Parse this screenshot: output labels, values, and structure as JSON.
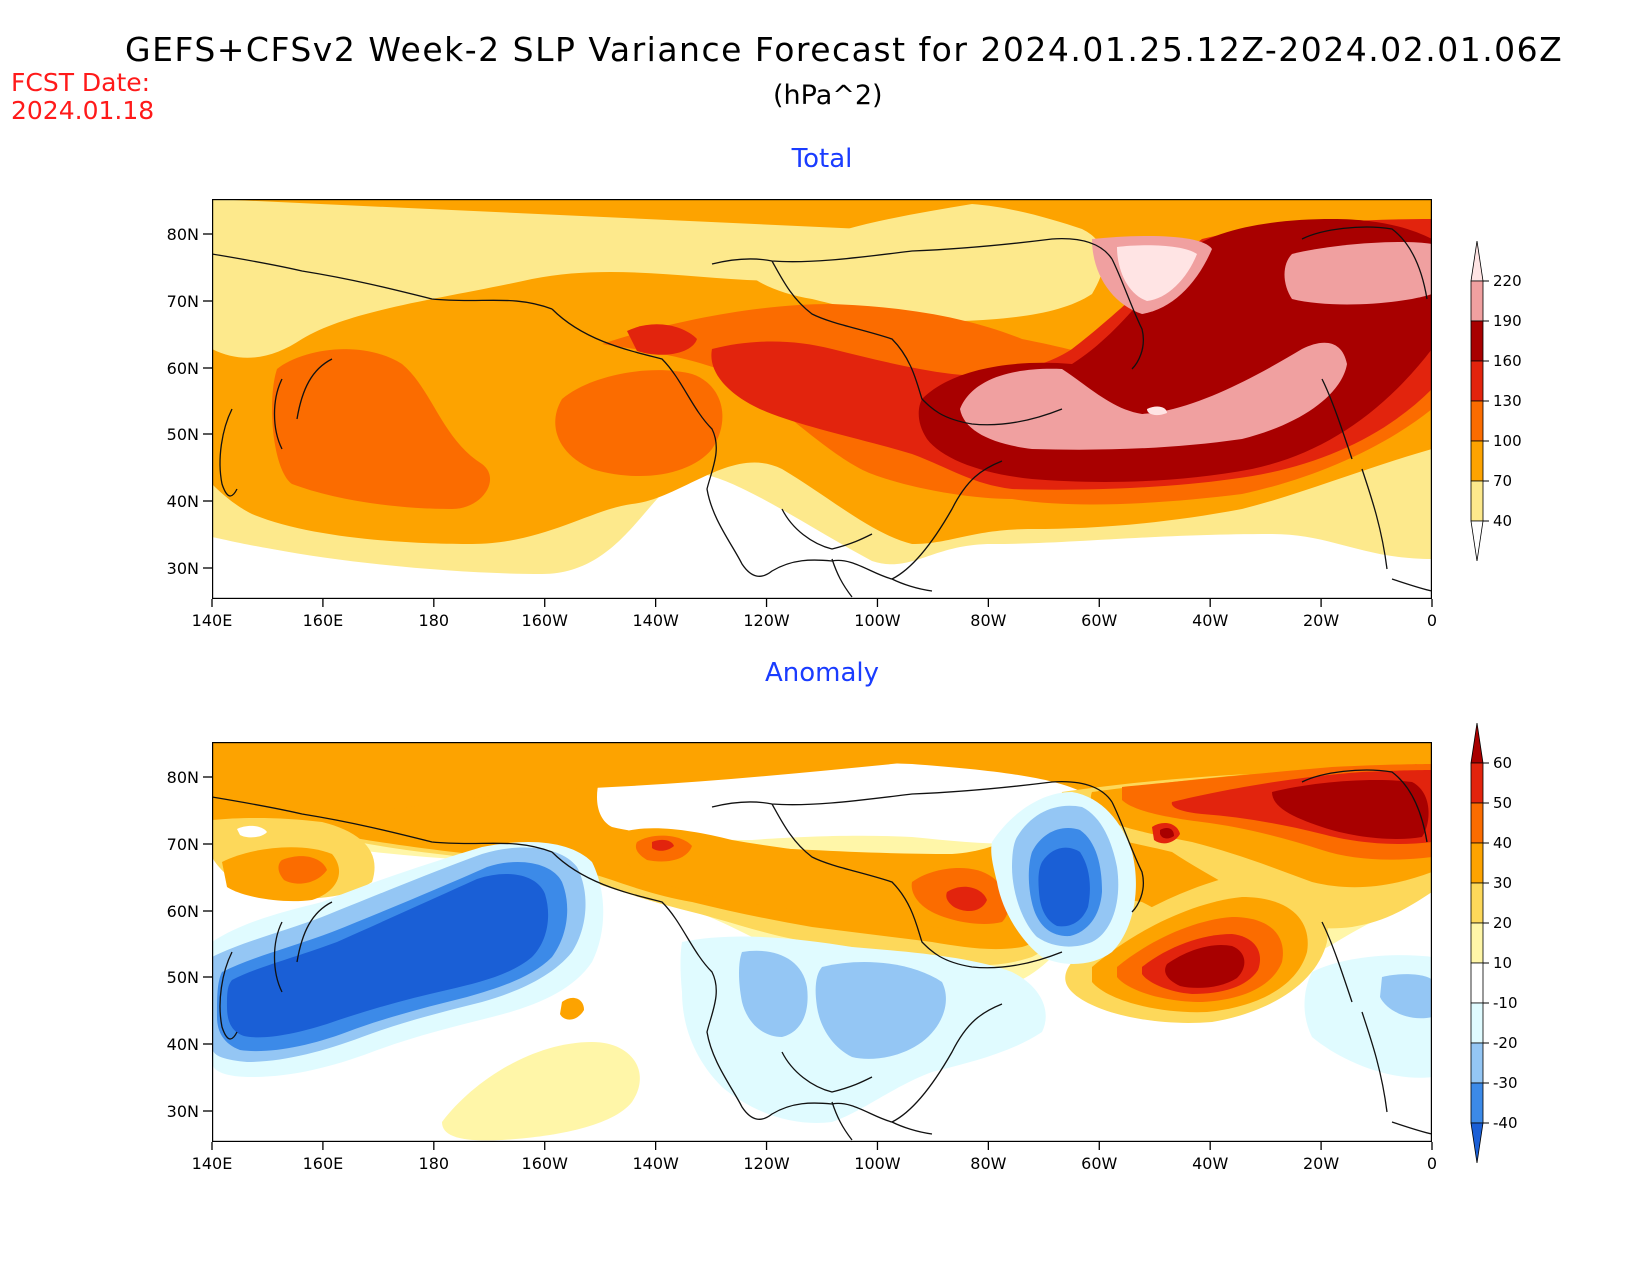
{
  "header": {
    "title": "GEFS+CFSv2 Week-2 SLP Variance Forecast for 2024.01.25.12Z-2024.02.01.06Z",
    "units": "(hPa^2)",
    "fcst_label": "FCST Date:",
    "fcst_date": "2024.01.18"
  },
  "lat_labels": [
    "80N",
    "70N",
    "60N",
    "50N",
    "40N",
    "30N"
  ],
  "lon_labels": [
    "140E",
    "160E",
    "180",
    "160W",
    "140W",
    "120W",
    "100W",
    "80W",
    "60W",
    "40W",
    "20W",
    "0"
  ],
  "panels": {
    "total": {
      "title": "Total",
      "levels": [
        "40",
        "70",
        "100",
        "130",
        "160",
        "190",
        "220"
      ],
      "colors": [
        "#ffffff",
        "#fde98c",
        "#fda300",
        "#fb6c00",
        "#e2240d",
        "#a80000",
        "#f0a0a0",
        "#ffe4e4"
      ]
    },
    "anomaly": {
      "title": "Anomaly",
      "levels": [
        "-40",
        "-30",
        "-20",
        "-10",
        "10",
        "20",
        "30",
        "40",
        "50",
        "60"
      ],
      "colors": [
        "#1a5fd6",
        "#3c8ae8",
        "#94c6f4",
        "#e0fbff",
        "#ffffff",
        "#fff6a8",
        "#fdd85a",
        "#fda300",
        "#fb6c00",
        "#e2240d",
        "#a80000"
      ]
    }
  }
}
